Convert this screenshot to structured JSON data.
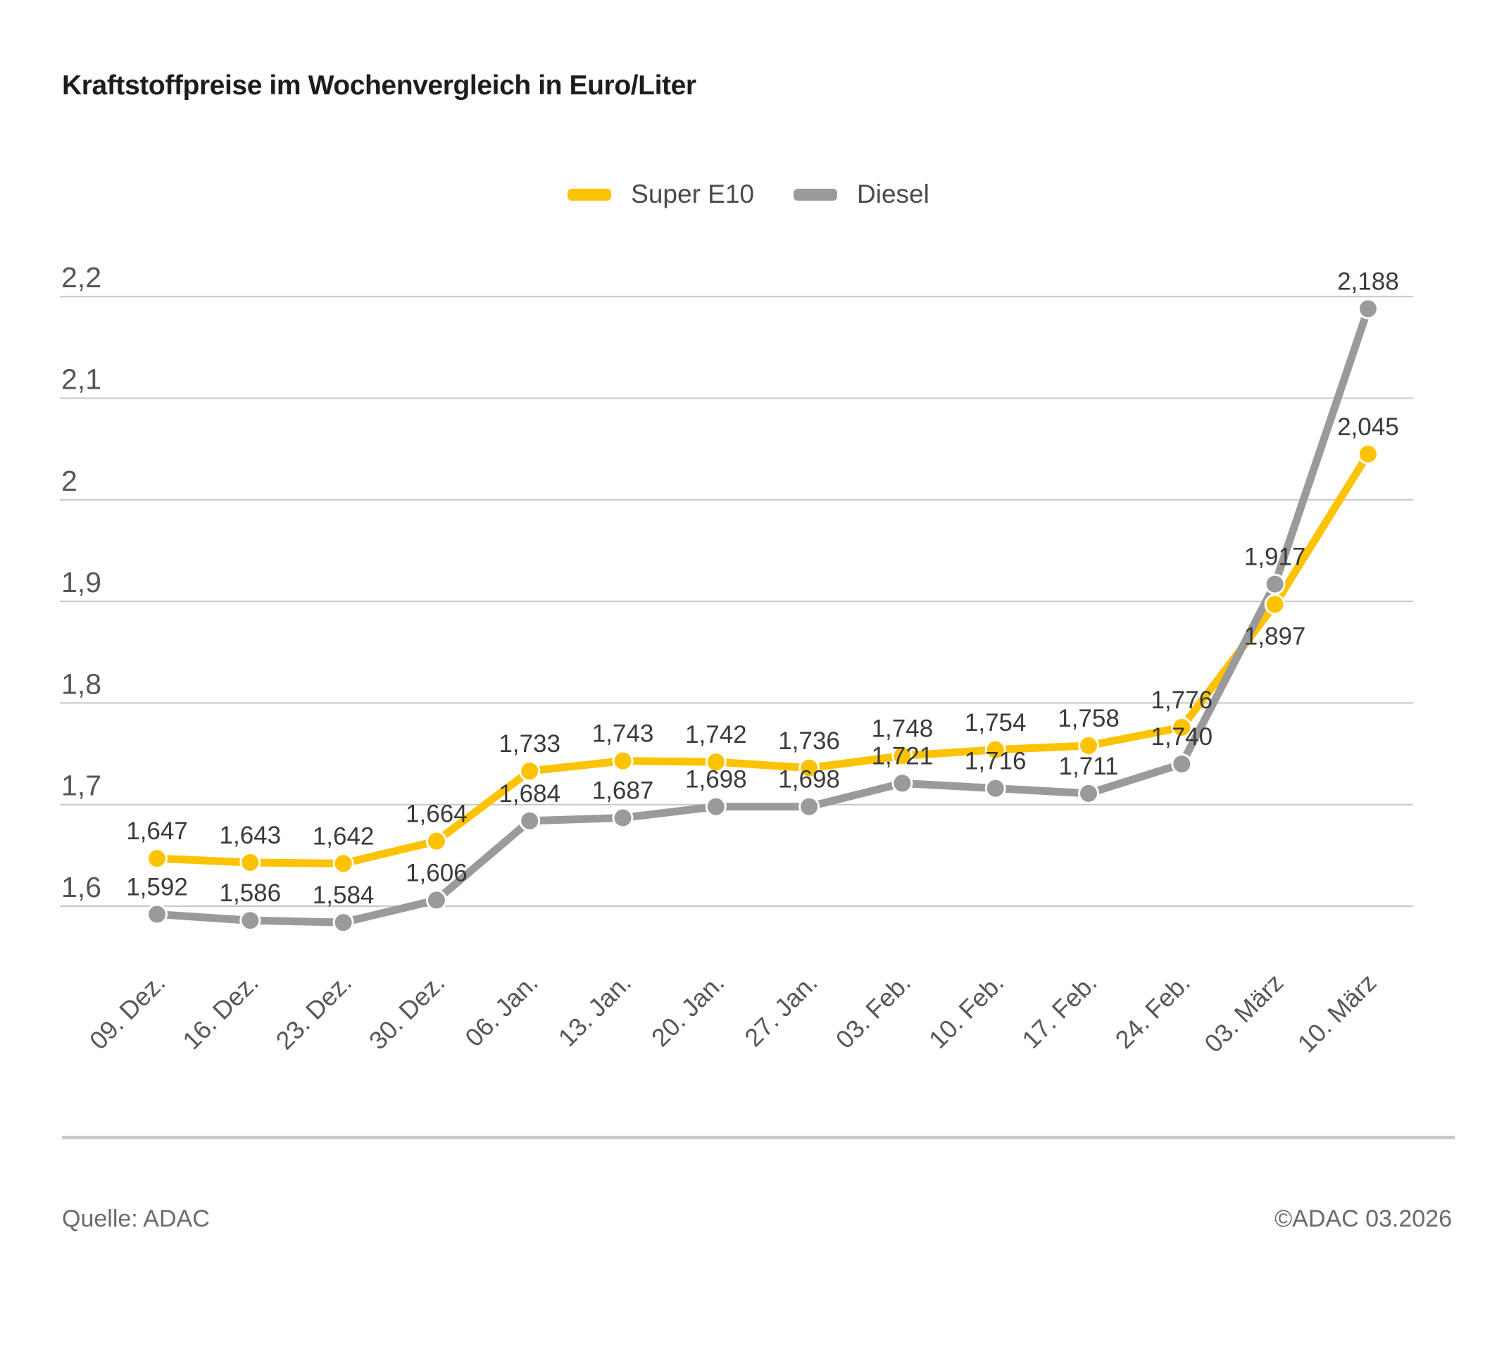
{
  "title": "Kraftstoffpreise im Wochenvergleich in Euro/Liter",
  "legend": [
    {
      "label": "Super E10",
      "color": "#fdc300"
    },
    {
      "label": "Diesel",
      "color": "#9a9a9a"
    }
  ],
  "footer": {
    "source": "Quelle: ADAC",
    "copyright": "©ADAC 03.2026"
  },
  "chart_data": {
    "type": "line",
    "title": "Kraftstoffpreise im Wochenvergleich in Euro/Liter",
    "unit": "Euro/Liter",
    "categories": [
      "09. Dez.",
      "16. Dez.",
      "23. Dez.",
      "30. Dez.",
      "06. Jan.",
      "13. Jan.",
      "20. Jan.",
      "27. Jan.",
      "03. Feb.",
      "10. Feb.",
      "17. Feb.",
      "24. Feb.",
      "03. März",
      "10. März"
    ],
    "series": [
      {
        "name": "Super E10",
        "color": "#fdc300",
        "values": [
          1.647,
          1.643,
          1.642,
          1.664,
          1.733,
          1.743,
          1.742,
          1.736,
          1.748,
          1.754,
          1.758,
          1.776,
          1.897,
          2.045
        ],
        "labels": [
          "1,647",
          "1,643",
          "1,642",
          "1,664",
          "1,733",
          "1,743",
          "1,742",
          "1,736",
          "1,748",
          "1,754",
          "1,758",
          "1,776",
          "1,897",
          "2,045"
        ]
      },
      {
        "name": "Diesel",
        "color": "#9a9a9a",
        "values": [
          1.592,
          1.586,
          1.584,
          1.606,
          1.684,
          1.687,
          1.698,
          1.698,
          1.721,
          1.716,
          1.711,
          1.74,
          1.917,
          2.188
        ],
        "labels": [
          "1,592",
          "1,586",
          "1,584",
          "1,606",
          "1,684",
          "1,687",
          "1,698",
          "1,698",
          "1,721",
          "1,716",
          "1,711",
          "1,740",
          "1,917",
          "2,188"
        ]
      }
    ],
    "y_ticks": {
      "values": [
        2.2,
        2.1,
        2.0,
        1.9,
        1.8,
        1.7,
        1.6
      ],
      "labels": [
        "2,2",
        "2,1",
        "2",
        "1,9",
        "1,8",
        "1,7",
        "1,6"
      ]
    },
    "ylim": [
      1.55,
      2.25
    ],
    "grid": true,
    "legend_position": "top-center",
    "label_overrides": [
      {
        "series": 0,
        "index": 12,
        "position": "below"
      }
    ]
  }
}
